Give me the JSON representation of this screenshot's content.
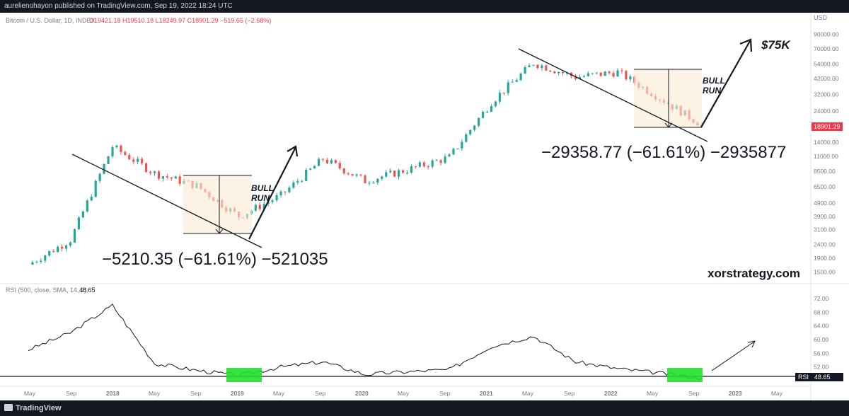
{
  "header": {
    "publish_line": "aurelienohayon published on TradingView.com, Sep 19, 2022 18:24 UTC"
  },
  "main_legend": {
    "title": "Bitcoin / U.S. Dollar, 1D, INDEX",
    "ohlc": "O19421.18 H19510.18 L18249.97 C18901.29 −519.65 (−2.68%)"
  },
  "price_axis": {
    "currency": "USD",
    "ticks": [
      "90000.00",
      "70000.00",
      "54000.00",
      "42000.00",
      "32000.00",
      "24000.00",
      "14000.00",
      "11000.00",
      "8500.00",
      "6500.00",
      "4900.00",
      "3900.00",
      "3100.00",
      "2400.00",
      "1900.00",
      "1500.00"
    ],
    "last_price": "18901.29"
  },
  "rsi_legend": {
    "title": "RSI (500, close, SMA, 14, 2)",
    "value": "48.65"
  },
  "rsi_axis": {
    "ticks": [
      "72.00",
      "68.00",
      "64.00",
      "60.00",
      "56.00",
      "52.00"
    ],
    "label": "RSI",
    "value": "48.65"
  },
  "time_axis": {
    "labels": [
      "May",
      "Sep",
      "2018",
      "May",
      "Sep",
      "2019",
      "May",
      "Sep",
      "2020",
      "May",
      "Sep",
      "2021",
      "May",
      "Sep",
      "2022",
      "May",
      "Sep",
      "2023",
      "May"
    ]
  },
  "annotations": {
    "measure1": "−5210.35 (−61.61%) −521035",
    "measure2": "−29358.77 (−61.61%) −2935877",
    "bull1": [
      "BULL",
      "RUN"
    ],
    "bull2": [
      "BULL",
      "RUN"
    ],
    "target": "$75K",
    "watermark": "xorstrategy.com"
  },
  "footer": {
    "brand": "TradingView"
  },
  "chart_data": {
    "type": "line",
    "title": "Bitcoin / U.S. Dollar, 1D, INDEX",
    "ylabel": "USD",
    "y_scale": "log",
    "ylim": [
      1300,
      95000
    ],
    "x": [
      "2017-05",
      "2017-09",
      "2018-01",
      "2018-05",
      "2018-09",
      "2019-01",
      "2019-05",
      "2019-09",
      "2020-01",
      "2020-05",
      "2020-09",
      "2021-01",
      "2021-05",
      "2021-09",
      "2022-01",
      "2022-05",
      "2022-09"
    ],
    "series": [
      {
        "values": [
          1700,
          2600,
          13000,
          8200,
          6600,
          3900,
          5600,
          10500,
          7200,
          8700,
          10800,
          28000,
          55000,
          43000,
          47000,
          30000,
          18901.29
        ]
      }
    ],
    "rsi": {
      "title": "RSI (500, close, SMA, 14, 2)",
      "ylim": [
        48,
        72
      ],
      "x": [
        "2017-05",
        "2017-09",
        "2018-01",
        "2018-05",
        "2018-09",
        "2019-01",
        "2019-05",
        "2019-09",
        "2020-01",
        "2020-05",
        "2020-09",
        "2021-01",
        "2021-05",
        "2021-09",
        "2022-01",
        "2022-05",
        "2022-09"
      ],
      "values": [
        57,
        62,
        70,
        53,
        51,
        49.5,
        52,
        53.5,
        49.8,
        50.6,
        51.2,
        58,
        61,
        53.5,
        51.5,
        50.2,
        48.65
      ]
    }
  }
}
